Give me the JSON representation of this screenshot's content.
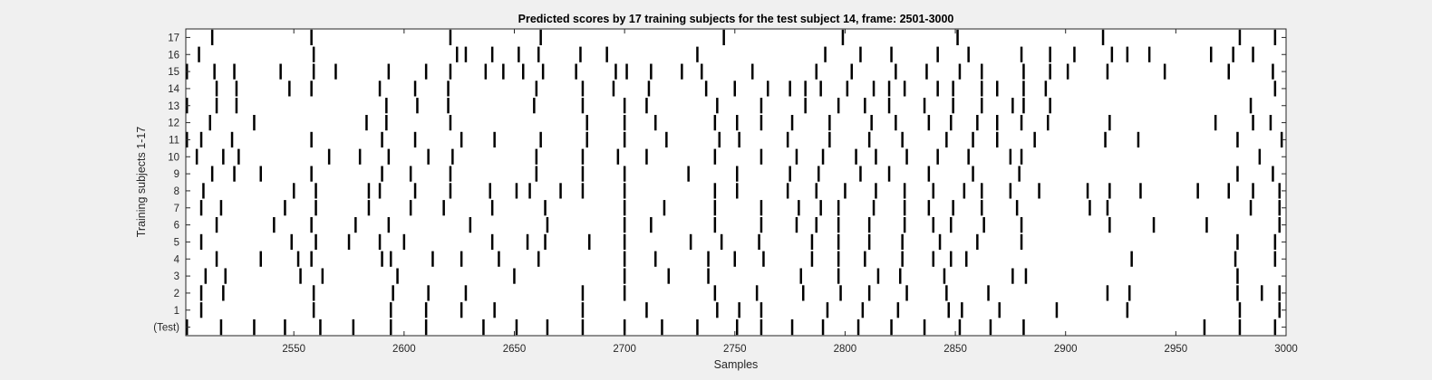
{
  "chart_data": {
    "type": "raster",
    "title": "Predicted scores by 17 training subjects for the test subject 14, frame: 2501-3000",
    "xlabel": "Samples",
    "ylabel": "Training subjects 1-17",
    "xlim": [
      2501,
      3000
    ],
    "xticks": [
      2550,
      2600,
      2650,
      2700,
      2750,
      2800,
      2850,
      2900,
      2950,
      3000
    ],
    "yticklabels": [
      "(Test)",
      "1",
      "2",
      "3",
      "4",
      "5",
      "6",
      "7",
      "8",
      "9",
      "10",
      "11",
      "12",
      "13",
      "14",
      "15",
      "16",
      "17"
    ],
    "grid": false,
    "mark_color": "#000000",
    "rows": [
      {
        "label": "(Test)",
        "events": [
          2501,
          2517,
          2532,
          2546,
          2562,
          2577,
          2594,
          2610,
          2636,
          2651,
          2665,
          2681,
          2700,
          2717,
          2733,
          2751,
          2762,
          2776,
          2790,
          2806,
          2821,
          2836,
          2852,
          2866,
          2881,
          2963,
          2979,
          2995
        ]
      },
      {
        "label": "1",
        "events": [
          2508,
          2559,
          2594,
          2610,
          2626,
          2641,
          2681,
          2710,
          2742,
          2752,
          2762,
          2792,
          2808,
          2824,
          2847,
          2853,
          2870,
          2896,
          2928,
          2979,
          2997
        ]
      },
      {
        "label": "2",
        "events": [
          2508,
          2518,
          2559,
          2595,
          2611,
          2628,
          2681,
          2700,
          2741,
          2760,
          2781,
          2798,
          2811,
          2828,
          2846,
          2865,
          2919,
          2929,
          2978,
          2989,
          2997
        ]
      },
      {
        "label": "3",
        "events": [
          2510,
          2519,
          2553,
          2563,
          2597,
          2650,
          2700,
          2720,
          2738,
          2780,
          2797,
          2815,
          2825,
          2845,
          2876,
          2882,
          2978
        ]
      },
      {
        "label": "4",
        "events": [
          2515,
          2535,
          2552,
          2558,
          2590,
          2594,
          2613,
          2626,
          2643,
          2661,
          2700,
          2714,
          2738,
          2750,
          2763,
          2785,
          2797,
          2809,
          2826,
          2840,
          2848,
          2855,
          2930,
          2977,
          2995
        ]
      },
      {
        "label": "5",
        "events": [
          2508,
          2549,
          2560,
          2575,
          2589,
          2600,
          2640,
          2656,
          2664,
          2684,
          2700,
          2730,
          2744,
          2761,
          2785,
          2797,
          2811,
          2826,
          2843,
          2860,
          2880,
          2978,
          2995
        ]
      },
      {
        "label": "6",
        "events": [
          2515,
          2541,
          2558,
          2578,
          2593,
          2630,
          2665,
          2700,
          2712,
          2741,
          2762,
          2778,
          2787,
          2797,
          2811,
          2827,
          2840,
          2848,
          2863,
          2880,
          2920,
          2940,
          2964,
          2997
        ]
      },
      {
        "label": "7",
        "events": [
          2508,
          2517,
          2546,
          2560,
          2584,
          2603,
          2618,
          2640,
          2664,
          2700,
          2718,
          2741,
          2762,
          2779,
          2789,
          2797,
          2813,
          2827,
          2838,
          2849,
          2862,
          2878,
          2911,
          2919,
          2984,
          2997
        ]
      },
      {
        "label": "8",
        "events": [
          2509,
          2550,
          2560,
          2584,
          2589,
          2605,
          2621,
          2639,
          2651,
          2657,
          2671,
          2681,
          2700,
          2741,
          2751,
          2774,
          2787,
          2800,
          2814,
          2827,
          2840,
          2854,
          2862,
          2875,
          2888,
          2910,
          2920,
          2934,
          2960,
          2974,
          2985,
          2997
        ]
      },
      {
        "label": "9",
        "events": [
          2513,
          2523,
          2535,
          2558,
          2590,
          2603,
          2621,
          2660,
          2681,
          2700,
          2729,
          2751,
          2775,
          2788,
          2807,
          2820,
          2838,
          2858,
          2879,
          2978,
          2994
        ]
      },
      {
        "label": "10",
        "events": [
          2506,
          2518,
          2525,
          2566,
          2580,
          2593,
          2611,
          2622,
          2660,
          2681,
          2697,
          2710,
          2741,
          2762,
          2778,
          2790,
          2805,
          2814,
          2828,
          2842,
          2856,
          2875,
          2880,
          2988
        ]
      },
      {
        "label": "11",
        "events": [
          2501,
          2508,
          2522,
          2558,
          2590,
          2605,
          2626,
          2641,
          2662,
          2683,
          2700,
          2719,
          2743,
          2752,
          2774,
          2793,
          2811,
          2826,
          2846,
          2858,
          2869,
          2886,
          2918,
          2933,
          2978,
          2998
        ]
      },
      {
        "label": "12",
        "events": [
          2512,
          2532,
          2583,
          2592,
          2621,
          2683,
          2700,
          2714,
          2741,
          2751,
          2762,
          2776,
          2793,
          2812,
          2823,
          2838,
          2848,
          2860,
          2869,
          2880,
          2892,
          2920,
          2968,
          2985,
          2993
        ]
      },
      {
        "label": "13",
        "events": [
          2501,
          2515,
          2524,
          2592,
          2606,
          2620,
          2659,
          2681,
          2700,
          2710,
          2742,
          2762,
          2782,
          2797,
          2809,
          2820,
          2836,
          2849,
          2862,
          2876,
          2881,
          2893,
          2984
        ]
      },
      {
        "label": "14",
        "events": [
          2515,
          2524,
          2548,
          2558,
          2589,
          2605,
          2620,
          2660,
          2681,
          2695,
          2711,
          2737,
          2750,
          2765,
          2775,
          2782,
          2789,
          2801,
          2813,
          2820,
          2827,
          2842,
          2849,
          2862,
          2869,
          2881,
          2891,
          2995
        ]
      },
      {
        "label": "15",
        "events": [
          2501,
          2514,
          2523,
          2544,
          2559,
          2569,
          2593,
          2610,
          2621,
          2637,
          2645,
          2654,
          2663,
          2678,
          2696,
          2701,
          2712,
          2726,
          2735,
          2758,
          2787,
          2803,
          2823,
          2837,
          2852,
          2862,
          2881,
          2893,
          2901,
          2919,
          2945,
          2974,
          2994
        ]
      },
      {
        "label": "16",
        "events": [
          2507,
          2559,
          2624,
          2628,
          2640,
          2652,
          2661,
          2680,
          2692,
          2733,
          2791,
          2807,
          2821,
          2842,
          2856,
          2880,
          2893,
          2904,
          2921,
          2928,
          2938,
          2966,
          2976,
          2985
        ]
      },
      {
        "label": "17",
        "events": [
          2513,
          2558,
          2621,
          2662,
          2745,
          2799,
          2851,
          2917,
          2979,
          2995
        ]
      }
    ]
  }
}
